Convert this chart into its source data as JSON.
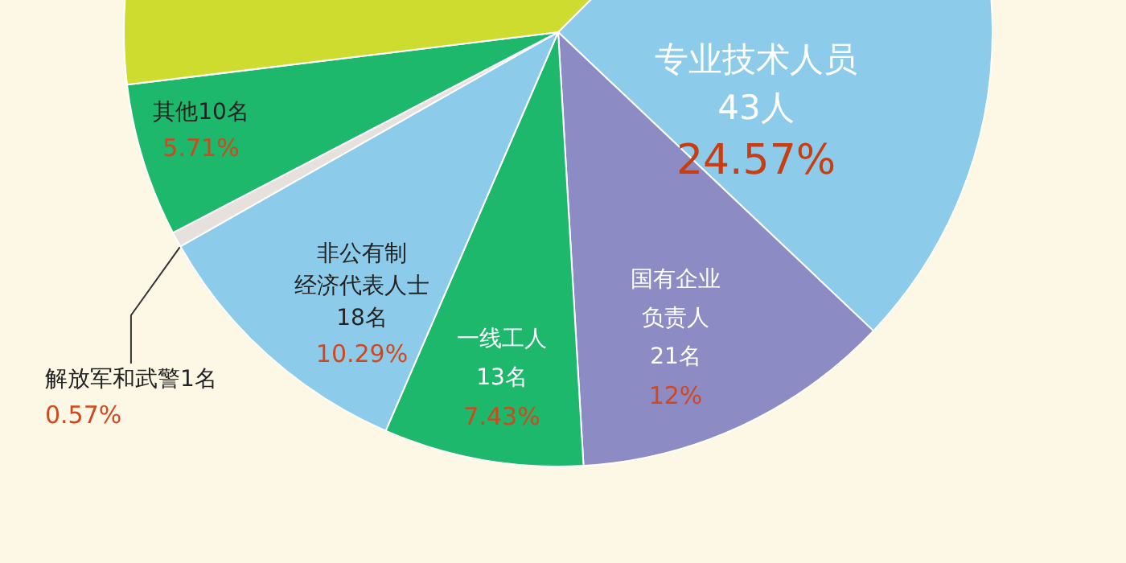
{
  "chart_data": {
    "type": "pie",
    "categories": [
      "专业技术人员43人",
      "国有企业负责人21名",
      "一线工人13名",
      "非公有制经济代表人士18名",
      "解放军和武警1名",
      "其他10名",
      null
    ],
    "values": [
      24.57,
      12,
      7.43,
      10.29,
      0.57,
      5.71,
      39.43
    ],
    "colors": [
      "#8ccbea",
      "#8d8bc4",
      "#1db86b",
      "#8ccbea",
      "#e6e1dc",
      "#1db86b",
      "#cddc2e"
    ],
    "value_labels": [
      "24.57%",
      "12%",
      "7.43%",
      "10.29%",
      "0.57%",
      "5.71%",
      null
    ]
  }
}
